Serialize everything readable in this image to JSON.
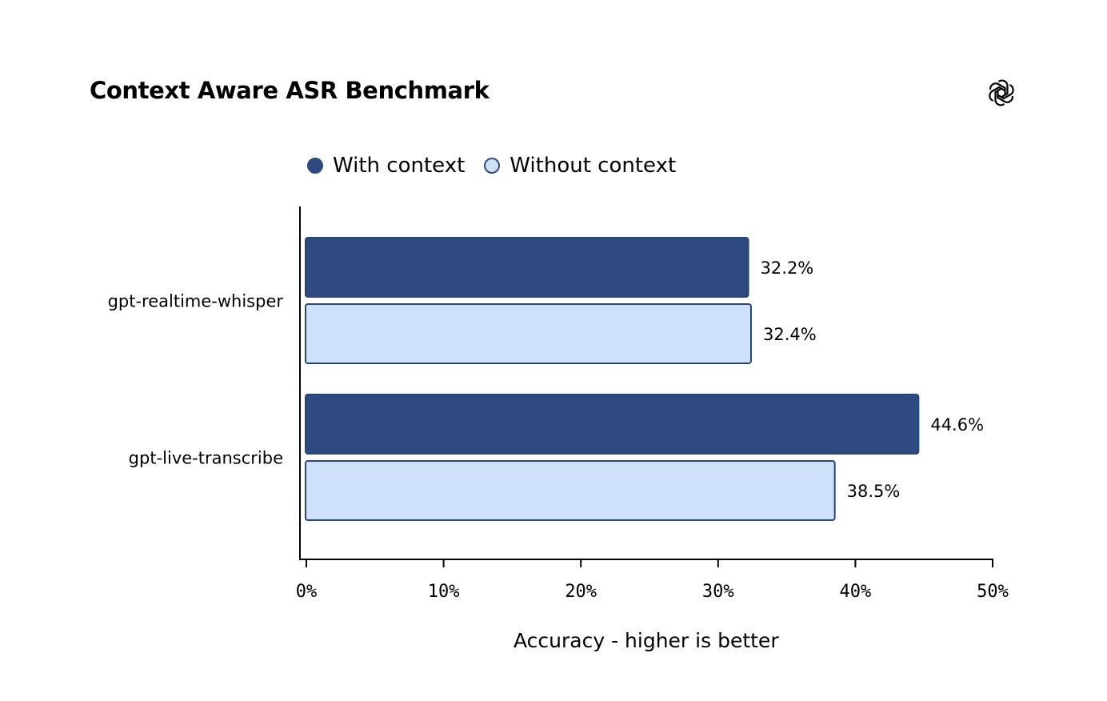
{
  "header": {
    "title": "Context Aware ASR Benchmark",
    "logo_icon": "openai-logo-icon"
  },
  "colors": {
    "with_context_fill": "#2f4a80",
    "without_context_fill": "#cfe0fb",
    "bar_stroke": "#2b4478",
    "axis": "#000000"
  },
  "chart_data": {
    "type": "bar",
    "orientation": "horizontal",
    "title": "Context Aware ASR Benchmark",
    "categories": [
      "gpt-realtime-whisper",
      "gpt-live-transcribe"
    ],
    "series": [
      {
        "name": "With context",
        "values": [
          32.2,
          44.6
        ],
        "labels": [
          "32.2%",
          "44.6%"
        ]
      },
      {
        "name": "Without context",
        "values": [
          32.4,
          38.5
        ],
        "labels": [
          "32.4%",
          "38.5%"
        ]
      }
    ],
    "xlabel": "Accuracy - higher is better",
    "ylabel": "",
    "xlim": [
      0,
      50
    ],
    "xticks": [
      0,
      10,
      20,
      30,
      40,
      50
    ],
    "xtick_labels": [
      "0%",
      "10%",
      "20%",
      "30%",
      "40%",
      "50%"
    ],
    "legend_position": "top",
    "grid": false
  }
}
